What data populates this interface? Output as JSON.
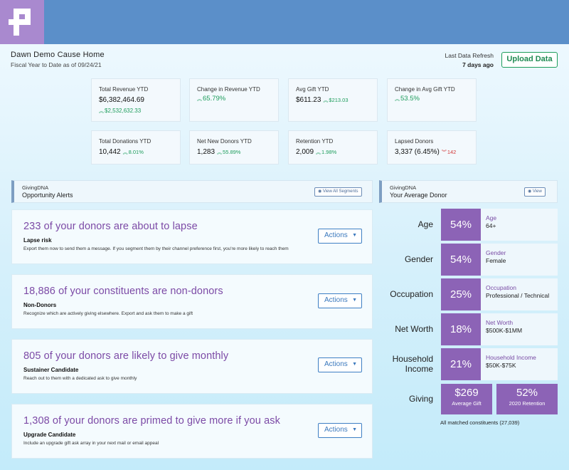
{
  "header": {
    "title": "Dawn Demo Cause Home",
    "subtitle": "Fiscal Year to Date as of 09/24/21",
    "refresh_label": "Last Data Refresh",
    "refresh_value": "7 days ago",
    "upload_label": "Upload Data"
  },
  "kpis": [
    {
      "label": "Total Revenue YTD",
      "value": "$6,382,464.69",
      "delta": "$2,532,632.33"
    },
    {
      "label": "Change in Revenue YTD",
      "delta": "65.79%"
    },
    {
      "label": "Avg Gift YTD",
      "value": "$611.23",
      "delta": "$213.03"
    },
    {
      "label": "Change in Avg Gift YTD",
      "delta": "53.5%"
    },
    {
      "label": "Total Donations YTD",
      "value": "10,442",
      "delta": "8.01%"
    },
    {
      "label": "Net New Donors YTD",
      "value": "1,283",
      "delta": "55.89%"
    },
    {
      "label": "Retention YTD",
      "value": "2,009",
      "delta": "1.98%"
    },
    {
      "label": "Lapsed Donors",
      "value": "3,337 (6.45%)",
      "delta": "142"
    }
  ],
  "alerts_section": {
    "kicker": "GivingDNA",
    "title": "Opportunity Alerts",
    "view_label": "View All Segments"
  },
  "opportunities": [
    {
      "headline": "233 of your donors are about to lapse",
      "name": "Lapse risk",
      "desc": "Export them now to send them a message. If you segment them by their channel preference first, you're more likely to reach them"
    },
    {
      "headline": "18,886 of your constituents are non-donors",
      "name": "Non-Donors",
      "desc": "Recognize which are actively giving elsewhere. Export and ask them to make a gift"
    },
    {
      "headline": "805 of your donors are likely to give monthly",
      "name": "Sustainer Candidate",
      "desc": "Reach out to them with a dedicated ask to give monthly"
    },
    {
      "headline": "1,308 of your donors are primed to give more if you ask",
      "name": "Upgrade Candidate",
      "desc": "Include an upgrade gift ask array in your next mail or email appeal"
    }
  ],
  "actions_label": "Actions",
  "donor_section": {
    "kicker": "GivingDNA",
    "title": "Your Average Donor",
    "view_label": "View"
  },
  "donor_rows": [
    {
      "label": "Age",
      "pct": "54%",
      "key": "Age",
      "value": "64+"
    },
    {
      "label": "Gender",
      "pct": "54%",
      "key": "Gender",
      "value": "Female"
    },
    {
      "label": "Occupation",
      "pct": "25%",
      "key": "Occupation",
      "value": "Professional / Technical"
    },
    {
      "label": "Net Worth",
      "pct": "18%",
      "key": "Net Worth",
      "value": "$500K-$1MM"
    },
    {
      "label_line1": "Household",
      "label_line2": "Income",
      "pct": "21%",
      "key": "Household Income",
      "value": "$50K-$75K"
    }
  ],
  "giving": {
    "label": "Giving",
    "avg_value": "$269",
    "avg_label": "Average Gift",
    "retention_value": "52%",
    "retention_label": "2020 Retention",
    "footnote": "All matched constituents (27,039)"
  },
  "colors": {
    "topbar": "#5b8fc9",
    "logo_bg": "#a989cf",
    "accent_purple": "#8c63b6",
    "positive": "#1e9d5c",
    "negative": "#d23b3b",
    "action_blue": "#3e7fc4"
  },
  "icons": {
    "logo": "plus-pixel-logo",
    "up": "double-chevron-up-icon",
    "down": "double-chevron-down-icon",
    "eye": "eye-icon",
    "caret": "caret-down-icon"
  }
}
